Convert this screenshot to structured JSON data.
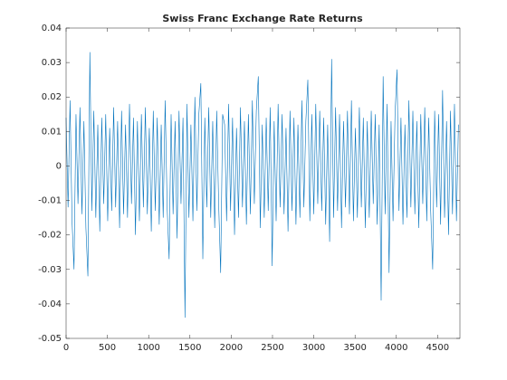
{
  "chart_data": {
    "type": "line",
    "title": "Swiss Franc Exchange Rate Returns",
    "color": "#0072bd",
    "x": [
      0,
      24,
      48,
      72,
      96,
      120,
      144,
      168,
      192,
      216,
      240,
      264,
      288,
      312,
      336,
      360,
      384,
      408,
      432,
      456,
      480,
      504,
      528,
      552,
      576,
      600,
      624,
      648,
      672,
      696,
      720,
      744,
      768,
      792,
      816,
      840,
      864,
      888,
      912,
      936,
      960,
      984,
      1008,
      1032,
      1056,
      1080,
      1104,
      1128,
      1152,
      1176,
      1200,
      1224,
      1248,
      1272,
      1296,
      1320,
      1344,
      1368,
      1392,
      1416,
      1440,
      1464,
      1488,
      1512,
      1536,
      1560,
      1584,
      1608,
      1632,
      1656,
      1680,
      1704,
      1728,
      1752,
      1776,
      1800,
      1824,
      1848,
      1872,
      1896,
      1920,
      1944,
      1968,
      1992,
      2016,
      2040,
      2064,
      2088,
      2112,
      2136,
      2160,
      2184,
      2208,
      2232,
      2256,
      2280,
      2304,
      2328,
      2352,
      2376,
      2400,
      2424,
      2448,
      2472,
      2496,
      2520,
      2544,
      2568,
      2592,
      2616,
      2640,
      2664,
      2688,
      2712,
      2736,
      2760,
      2784,
      2808,
      2832,
      2856,
      2880,
      2904,
      2928,
      2952,
      2976,
      3000,
      3024,
      3048,
      3072,
      3096,
      3120,
      3144,
      3168,
      3192,
      3216,
      3240,
      3264,
      3288,
      3312,
      3336,
      3360,
      3384,
      3408,
      3432,
      3456,
      3480,
      3504,
      3528,
      3552,
      3576,
      3600,
      3624,
      3648,
      3672,
      3696,
      3720,
      3744,
      3768,
      3792,
      3816,
      3840,
      3864,
      3888,
      3912,
      3936,
      3960,
      3984,
      4008,
      4032,
      4056,
      4080,
      4104,
      4128,
      4152,
      4176,
      4200,
      4224,
      4248,
      4272,
      4296,
      4320,
      4344,
      4368,
      4392,
      4416,
      4440,
      4464,
      4488,
      4512,
      4536,
      4560,
      4584,
      4608,
      4632,
      4656,
      4680,
      4704,
      4728,
      4752
    ],
    "values": [
      0.014,
      -0.012,
      0.019,
      -0.016,
      -0.03,
      0.015,
      -0.011,
      0.017,
      -0.014,
      0.013,
      -0.018,
      -0.032,
      0.033,
      -0.013,
      0.016,
      -0.015,
      0.012,
      -0.019,
      0.014,
      -0.011,
      0.015,
      -0.016,
      0.011,
      -0.013,
      0.017,
      -0.012,
      0.013,
      -0.018,
      0.016,
      -0.014,
      0.012,
      -0.015,
      0.018,
      -0.011,
      0.014,
      -0.02,
      0.013,
      -0.016,
      0.015,
      -0.012,
      0.017,
      -0.014,
      0.011,
      -0.019,
      0.016,
      -0.013,
      0.014,
      -0.017,
      0.012,
      -0.015,
      0.019,
      -0.012,
      -0.027,
      0.015,
      -0.014,
      0.013,
      -0.021,
      0.016,
      -0.011,
      0.014,
      -0.044,
      0.018,
      -0.015,
      0.012,
      -0.016,
      0.02,
      -0.013,
      0.015,
      0.024,
      -0.027,
      0.014,
      -0.012,
      0.017,
      -0.015,
      0.013,
      -0.018,
      0.016,
      -0.011,
      -0.031,
      0.015,
      0.012,
      -0.016,
      0.018,
      -0.013,
      0.014,
      -0.02,
      0.011,
      -0.015,
      0.017,
      -0.012,
      0.013,
      -0.017,
      0.015,
      -0.014,
      0.019,
      -0.011,
      0.016,
      0.026,
      -0.018,
      0.012,
      -0.015,
      0.014,
      -0.013,
      0.017,
      -0.029,
      0.013,
      -0.016,
      0.018,
      -0.012,
      0.015,
      -0.014,
      0.011,
      -0.019,
      0.016,
      -0.013,
      0.014,
      -0.017,
      0.012,
      -0.015,
      0.019,
      -0.012,
      0.013,
      0.025,
      -0.016,
      0.015,
      -0.014,
      0.018,
      -0.011,
      0.016,
      -0.013,
      0.014,
      -0.017,
      0.012,
      -0.022,
      0.031,
      -0.015,
      0.017,
      -0.013,
      0.015,
      -0.018,
      0.013,
      -0.012,
      0.016,
      -0.014,
      0.019,
      -0.016,
      0.011,
      -0.015,
      0.017,
      -0.012,
      0.014,
      -0.018,
      0.013,
      -0.015,
      0.016,
      -0.011,
      0.015,
      -0.017,
      0.012,
      -0.039,
      0.026,
      -0.014,
      0.018,
      -0.031,
      0.013,
      -0.016,
      0.015,
      0.028,
      -0.013,
      0.014,
      -0.017,
      0.012,
      -0.015,
      0.019,
      -0.012,
      0.016,
      -0.014,
      0.013,
      -0.018,
      0.015,
      -0.011,
      0.017,
      -0.016,
      0.014,
      -0.013,
      -0.03,
      0.016,
      -0.012,
      0.015,
      -0.017,
      0.022,
      -0.015,
      0.013,
      -0.02,
      0.016,
      -0.014,
      0.018,
      -0.016,
      0.012
    ],
    "xlim": [
      0,
      4770
    ],
    "xticks": [
      0,
      500,
      1000,
      1500,
      2000,
      2500,
      3000,
      3500,
      4000,
      4500
    ],
    "ylim": [
      -0.05,
      0.04
    ],
    "yticks": [
      -0.05,
      -0.04,
      -0.03,
      -0.02,
      -0.01,
      0,
      0.01,
      0.02,
      0.03,
      0.04
    ]
  }
}
